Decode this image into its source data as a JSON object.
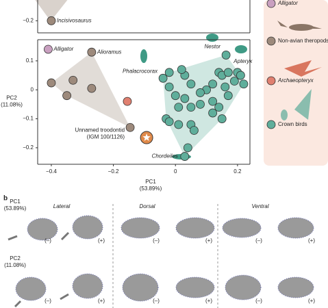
{
  "chart_data": [
    {
      "type": "scatter",
      "ylim": [
        -0.24,
        -0.127
      ],
      "yticks": [
        {
          "value": -0.2,
          "label": "−0.2"
        }
      ],
      "xlim": [
        -0.444,
        0.24
      ],
      "series": [
        {
          "color": "#9d8a7c",
          "x": [
            -0.4
          ],
          "values": [
            -0.2
          ],
          "labels": [
            "Incisivosaurus"
          ]
        }
      ]
    },
    {
      "type": "scatter",
      "xlabel": [
        "PC1",
        "(53.89%)"
      ],
      "ylabel": [
        "PC2",
        "(11.08%)"
      ],
      "xlim": [
        -0.444,
        0.24
      ],
      "ylim": [
        -0.257,
        0.173
      ],
      "xticks": [
        {
          "value": -0.4,
          "label": "−0.4"
        },
        {
          "value": -0.2,
          "label": "−0.2"
        },
        0,
        0.2
      ],
      "yticks": [
        {
          "value": -0.2,
          "label": "−0.2"
        },
        {
          "value": -0.1,
          "label": "−0.1"
        },
        0,
        0.1
      ],
      "series": [
        {
          "name": "Alligator",
          "color": "#c9a0c0",
          "x": [
            -0.41
          ],
          "values": [
            0.14
          ],
          "labels": [
            "Alligator"
          ]
        },
        {
          "name": "Non-avian theropods",
          "color": "#9d8a7c",
          "hull": true,
          "x": [
            -0.27,
            -0.4,
            -0.33,
            -0.35,
            -0.27,
            -0.146
          ],
          "values": [
            0.13,
            0.024,
            0.033,
            -0.02,
            0.005,
            -0.13
          ],
          "labels": [
            "Alioramus",
            null,
            null,
            null,
            null,
            [
              "Unnamed troodontid",
              "(IGM 100/1126)"
            ]
          ]
        },
        {
          "name": "Archaeopteryx",
          "color": "#e08070",
          "x": [
            -0.155
          ],
          "values": [
            -0.04
          ]
        },
        {
          "name": "Crown birds",
          "color": "#5fae9b",
          "hull": true,
          "x": [
            0.163,
            0.14,
            0.15,
            0.17,
            0.16,
            0.17,
            0.19,
            0.2,
            0.21,
            0.22,
            0.12,
            0.1,
            0.08,
            0.05,
            0.03,
            0.02,
            -0.02,
            -0.04,
            -0.02,
            0.0,
            0.03,
            0.01,
            0.05,
            0.08,
            0.12,
            0.14,
            -0.03,
            -0.02,
            0.01,
            0.05,
            0.06,
            0.04,
            0.03,
            0.15,
            0.12
          ],
          "values": [
            0.12,
            0.06,
            0.05,
            0.06,
            0.01,
            -0.02,
            0.03,
            0.06,
            0.05,
            0.02,
            0.02,
            0.0,
            -0.01,
            0.02,
            0.05,
            0.07,
            0.06,
            0.04,
            0.01,
            -0.02,
            -0.03,
            -0.06,
            -0.06,
            -0.05,
            -0.04,
            -0.06,
            -0.1,
            -0.11,
            -0.12,
            -0.12,
            -0.14,
            -0.2,
            -0.23,
            -0.1,
            -0.08
          ],
          "labels": [
            "Nestor",
            null,
            null,
            null,
            null,
            null,
            null,
            "Apteryx",
            null,
            null,
            null,
            null,
            null,
            null,
            null,
            null,
            null,
            "Phalacrocorax",
            null,
            null,
            null,
            null,
            null,
            null,
            null,
            null,
            null,
            null,
            null,
            null,
            null,
            null,
            "Chordeiles",
            null,
            null
          ]
        },
        {
          "color": "#e08a4a",
          "marker": "star",
          "x": [
            -0.093
          ],
          "values": [
            -0.165
          ]
        }
      ]
    }
  ],
  "panel_b": {
    "label": "b",
    "columns": [
      "Lateral",
      "Dorsal",
      "Ventral"
    ],
    "rows": [
      [
        "PC1",
        "(53.89%)"
      ],
      [
        "PC2",
        "(11.08%)"
      ]
    ],
    "signs": [
      "(–)",
      "(+)"
    ]
  }
}
